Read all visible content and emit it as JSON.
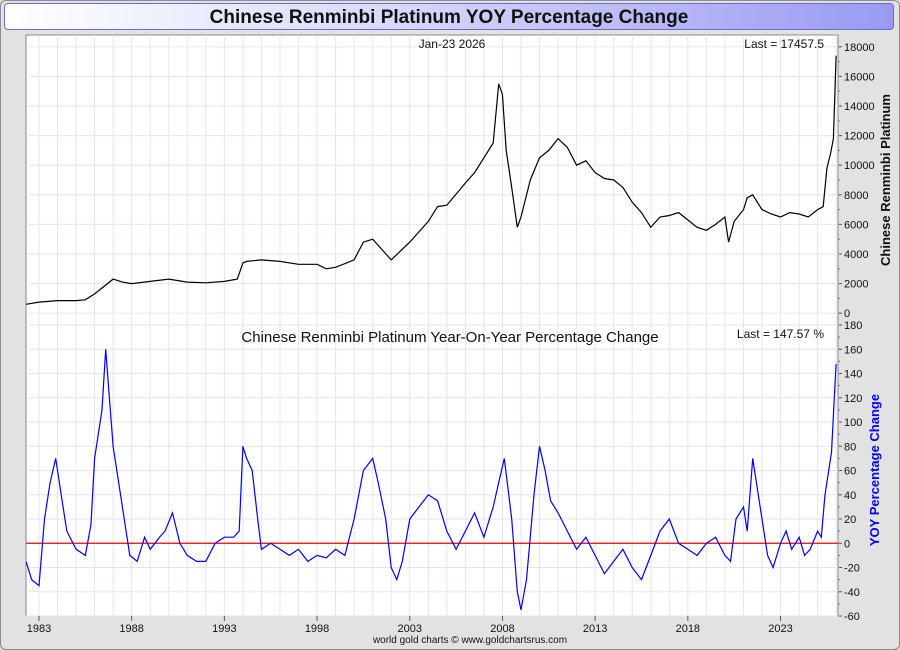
{
  "page": {
    "title": "Chinese Renminbi Platinum YOY Percentage Change"
  },
  "chart_data": {
    "type": "line",
    "x_ticks": [
      "1983",
      "1988",
      "1993",
      "1998",
      "2003",
      "2008",
      "2013",
      "2018",
      "2023"
    ],
    "xlim": [
      1982.3,
      2026.1
    ],
    "credit": "world gold charts © www.goldchartsrus.com",
    "colors": {
      "price": "#000000",
      "yoy": "#0000ff",
      "zero_line": "#ff0000",
      "grid": "#e3e6f2"
    },
    "panels": [
      {
        "name": "price",
        "date_label": "Jan-23  2026",
        "last_label": "Last = 17457.5",
        "ylabel": "Chinese Renminbi Platinum",
        "ylim": [
          -800,
          18800
        ],
        "yticks": [
          "0",
          "2000",
          "4000",
          "6000",
          "8000",
          "10000",
          "12000",
          "14000",
          "16000",
          "18000"
        ],
        "series": {
          "x": [
            1982.3,
            1983.0,
            1984.0,
            1985.0,
            1985.5,
            1986.0,
            1986.5,
            1987.0,
            1987.5,
            1988.0,
            1989.0,
            1990.0,
            1990.5,
            1991.0,
            1992.0,
            1993.0,
            1993.7,
            1994.0,
            1994.2,
            1995.0,
            1996.0,
            1997.0,
            1998.0,
            1998.5,
            1999.0,
            2000.0,
            2000.5,
            2001.0,
            2001.5,
            2002.0,
            2003.0,
            2004.0,
            2004.5,
            2005.0,
            2006.0,
            2006.5,
            2007.0,
            2007.5,
            2007.8,
            2008.0,
            2008.2,
            2008.5,
            2008.8,
            2009.0,
            2009.5,
            2010.0,
            2010.5,
            2011.0,
            2011.5,
            2012.0,
            2012.5,
            2013.0,
            2013.5,
            2014.0,
            2014.5,
            2015.0,
            2015.5,
            2016.0,
            2016.5,
            2017.0,
            2017.5,
            2018.0,
            2018.5,
            2019.0,
            2019.5,
            2020.0,
            2020.2,
            2020.5,
            2021.0,
            2021.2,
            2021.5,
            2022.0,
            2022.5,
            2023.0,
            2023.5,
            2024.0,
            2024.5,
            2025.0,
            2025.3,
            2025.5,
            2025.7,
            2025.85,
            2026.0
          ],
          "y": [
            600,
            750,
            850,
            850,
            900,
            1300,
            1800,
            2300,
            2100,
            2000,
            2150,
            2300,
            2200,
            2100,
            2050,
            2150,
            2300,
            3400,
            3500,
            3600,
            3500,
            3300,
            3300,
            3000,
            3100,
            3600,
            4800,
            5000,
            4300,
            3600,
            4800,
            6200,
            7200,
            7300,
            8800,
            9500,
            10500,
            11500,
            15500,
            14800,
            11000,
            8500,
            5800,
            6500,
            9000,
            10500,
            11000,
            11800,
            11200,
            10000,
            10300,
            9500,
            9100,
            9000,
            8500,
            7500,
            6800,
            5800,
            6500,
            6600,
            6800,
            6300,
            5800,
            5600,
            6000,
            6500,
            4800,
            6200,
            7000,
            7800,
            8000,
            7000,
            6700,
            6500,
            6800,
            6700,
            6500,
            7000,
            7200,
            9800,
            10800,
            11800,
            17400
          ]
        }
      },
      {
        "name": "yoy",
        "title": "Chinese Renminbi Platinum Year-On-Year Percentage Change",
        "last_label": "Last = 147.57 %",
        "ylabel": "YOY Percentage Change",
        "ylim": [
          -60,
          180
        ],
        "yticks": [
          "-60",
          "-40",
          "-20",
          "0",
          "20",
          "40",
          "60",
          "80",
          "100",
          "120",
          "140",
          "160",
          "180"
        ],
        "series": {
          "x": [
            1982.3,
            1982.6,
            1983.0,
            1983.3,
            1983.6,
            1983.9,
            1984.2,
            1984.5,
            1985.0,
            1985.5,
            1985.8,
            1986.0,
            1986.2,
            1986.4,
            1986.6,
            1986.8,
            1987.0,
            1987.2,
            1987.5,
            1987.9,
            1988.3,
            1988.7,
            1989.0,
            1989.5,
            1989.8,
            1990.2,
            1990.6,
            1991.0,
            1991.5,
            1992.0,
            1992.5,
            1993.0,
            1993.5,
            1993.8,
            1994.0,
            1994.2,
            1994.5,
            1994.8,
            1995.0,
            1995.5,
            1996.0,
            1996.5,
            1997.0,
            1997.5,
            1998.0,
            1998.5,
            1999.0,
            1999.5,
            2000.0,
            2000.5,
            2001.0,
            2001.3,
            2001.7,
            2002.0,
            2002.3,
            2002.6,
            2003.0,
            2003.5,
            2004.0,
            2004.5,
            2005.0,
            2005.5,
            2006.0,
            2006.5,
            2007.0,
            2007.5,
            2007.8,
            2008.1,
            2008.5,
            2008.8,
            2009.0,
            2009.3,
            2009.7,
            2010.0,
            2010.3,
            2010.6,
            2011.0,
            2011.5,
            2012.0,
            2012.5,
            2013.0,
            2013.5,
            2014.0,
            2014.5,
            2015.0,
            2015.5,
            2016.0,
            2016.5,
            2017.0,
            2017.5,
            2018.0,
            2018.5,
            2019.0,
            2019.5,
            2020.0,
            2020.3,
            2020.6,
            2021.0,
            2021.2,
            2021.5,
            2021.8,
            2022.0,
            2022.3,
            2022.6,
            2023.0,
            2023.3,
            2023.6,
            2024.0,
            2024.3,
            2024.6,
            2025.0,
            2025.2,
            2025.4,
            2025.6,
            2025.75,
            2025.9,
            2026.0
          ],
          "y": [
            -15,
            -30,
            -35,
            20,
            50,
            70,
            40,
            10,
            -5,
            -10,
            15,
            70,
            90,
            110,
            160,
            120,
            80,
            60,
            30,
            -10,
            -15,
            5,
            -5,
            5,
            10,
            25,
            0,
            -10,
            -15,
            -15,
            0,
            5,
            5,
            10,
            80,
            70,
            60,
            20,
            -5,
            0,
            -5,
            -10,
            -5,
            -15,
            -10,
            -12,
            -5,
            -10,
            20,
            60,
            70,
            50,
            20,
            -20,
            -30,
            -15,
            20,
            30,
            40,
            35,
            10,
            -5,
            10,
            25,
            5,
            30,
            50,
            70,
            20,
            -40,
            -55,
            -30,
            40,
            80,
            60,
            35,
            25,
            10,
            -5,
            5,
            -10,
            -25,
            -15,
            -5,
            -20,
            -30,
            -10,
            10,
            20,
            0,
            -5,
            -10,
            0,
            5,
            -10,
            -15,
            20,
            30,
            10,
            70,
            40,
            20,
            -10,
            -20,
            0,
            10,
            -5,
            5,
            -10,
            -5,
            10,
            5,
            40,
            60,
            75,
            120,
            148
          ]
        }
      }
    ]
  }
}
